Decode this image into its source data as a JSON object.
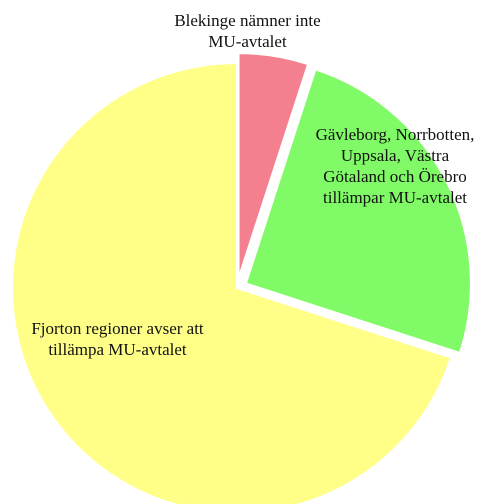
{
  "chart_data": {
    "type": "pie",
    "categories": [
      "Blekinge nämner inte MU-avtalet",
      "Gävleborg, Norrbotten, Uppsala, Västra Götaland och Örebro tillämpar MU-avtalet",
      "Fjorton regioner avser att tillämpa MU-avtalet"
    ],
    "values": [
      1,
      5,
      14
    ],
    "colors": [
      "#f4808f",
      "#80fa66",
      "#ffff88"
    ]
  }
}
